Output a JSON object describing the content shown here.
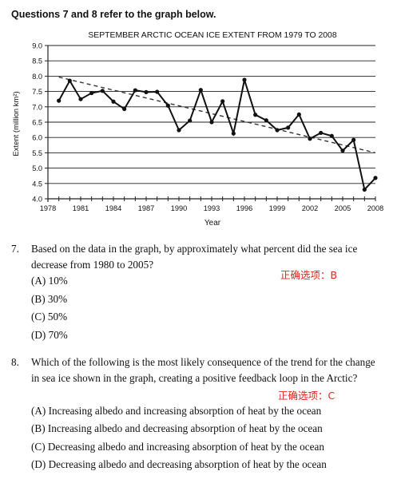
{
  "heading": "Questions 7 and 8 refer to the graph below.",
  "chart_data": {
    "type": "line",
    "title": "SEPTEMBER ARCTIC OCEAN ICE EXTENT FROM 1979 TO 2008",
    "xlabel": "Year",
    "ylabel": "Extent (million km²)",
    "xlim": [
      1978,
      2008
    ],
    "ylim": [
      4.0,
      9.0
    ],
    "xticks": [
      "1978",
      "1981",
      "1984",
      "1987",
      "1990",
      "1993",
      "1996",
      "1999",
      "2002",
      "2005",
      "2008"
    ],
    "yticks": [
      "4.0",
      "4.5",
      "5.0",
      "5.5",
      "6.0",
      "6.5",
      "7.0",
      "7.5",
      "8.0",
      "8.5",
      "9.0"
    ],
    "grid": "horizontal",
    "series": [
      {
        "x": [
          1979,
          1980,
          1981,
          1982,
          1983,
          1984,
          1985,
          1986,
          1987,
          1988,
          1989,
          1990,
          1991,
          1992,
          1993,
          1994,
          1995,
          1996,
          1997,
          1998,
          1999,
          2000,
          2001,
          2002,
          2003,
          2004,
          2005,
          2006,
          2007,
          2008
        ],
        "values": [
          7.2,
          7.85,
          7.25,
          7.45,
          7.52,
          7.17,
          6.93,
          7.54,
          7.48,
          7.49,
          7.04,
          6.24,
          6.55,
          7.55,
          6.5,
          7.18,
          6.13,
          7.88,
          6.74,
          6.56,
          6.24,
          6.32,
          6.75,
          5.96,
          6.15,
          6.05,
          5.57,
          5.92,
          4.3,
          4.68
        ]
      }
    ],
    "trend": {
      "x": [
        1979,
        2008
      ],
      "y": [
        7.97,
        5.5
      ]
    }
  },
  "questions": [
    {
      "number": "7.",
      "stem": "Based on the data in the graph, by approximately what percent did the sea ice decrease from 1980 to 2005?",
      "answer_note": "正确选项：B",
      "options": [
        "(A) 10%",
        "(B) 30%",
        "(C) 50%",
        "(D) 70%"
      ]
    },
    {
      "number": "8.",
      "stem": "Which of the following is the most likely consequence of the trend for the change in sea ice shown in the graph, creating a positive feedback loop in the Arctic?",
      "answer_note": "正确选项：C",
      "options": [
        "(A) Increasing albedo and increasing absorption of heat by the ocean",
        "(B) Increasing albedo and decreasing absorption of heat by the ocean",
        "(C) Decreasing albedo and increasing absorption of heat by the ocean",
        "(D) Decreasing albedo and decreasing absorption of heat by the ocean"
      ]
    }
  ]
}
